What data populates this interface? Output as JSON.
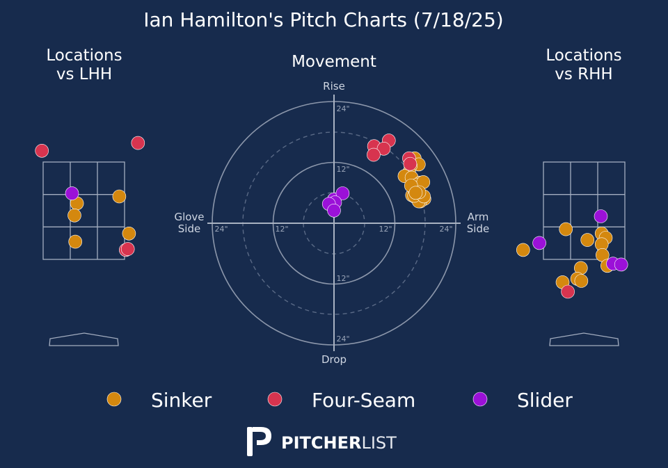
{
  "title": "Ian Hamilton's Pitch Charts (7/18/25)",
  "panels": {
    "lhh_title_line1": "Locations",
    "lhh_title_line2": "vs LHH",
    "movement_title": "Movement",
    "rhh_title_line1": "Locations",
    "rhh_title_line2": "vs RHH"
  },
  "movement_axes": {
    "top": "Rise",
    "bottom": "Drop",
    "left_line1": "Glove",
    "left_line2": "Side",
    "right_line1": "Arm",
    "right_line2": "Side",
    "ring_labels": [
      "24\"",
      "12\"",
      "12\"",
      "24\""
    ]
  },
  "logo": {
    "bold": "PITCHER",
    "light": "LIST"
  },
  "colors": {
    "background": "#172b4d",
    "Sinker": "#d4880f",
    "Four-Seam": "#d7344f",
    "Slider": "#9b11d8"
  },
  "chart_data": [
    {
      "type": "scatter",
      "title": "Movement",
      "xlabel": "Glove Side / Arm Side (inches)",
      "ylabel": "Drop / Rise (inches)",
      "xlim": [
        -24,
        24
      ],
      "ylim": [
        -24,
        24
      ],
      "series": [
        {
          "name": "Sinker",
          "points": [
            [
              15.9,
              12.8
            ],
            [
              16.7,
              11.6
            ],
            [
              15.1,
              11.3
            ],
            [
              14.8,
              10.0
            ],
            [
              13.9,
              9.3
            ],
            [
              15.3,
              9.0
            ],
            [
              17.0,
              8.0
            ],
            [
              16.4,
              7.6
            ],
            [
              16.0,
              6.8
            ],
            [
              15.9,
              6.6
            ],
            [
              15.4,
              5.5
            ],
            [
              16.1,
              5.1
            ],
            [
              17.8,
              4.8
            ],
            [
              17.0,
              4.3
            ],
            [
              16.7,
              4.3
            ],
            [
              15.8,
              5.4
            ],
            [
              15.6,
              7.0
            ],
            [
              17.7,
              5.3
            ],
            [
              17.6,
              8.1
            ],
            [
              15.2,
              7.4
            ],
            [
              16.8,
              6.1
            ],
            [
              16.1,
              6.0
            ]
          ]
        },
        {
          "name": "Four-Seam",
          "points": [
            [
              10.8,
              16.3
            ],
            [
              7.9,
              15.2
            ],
            [
              9.8,
              14.7
            ],
            [
              7.8,
              13.5
            ],
            [
              14.8,
              12.8
            ],
            [
              15.0,
              11.7
            ]
          ]
        },
        {
          "name": "Slider",
          "points": [
            [
              0.0,
              4.7
            ],
            [
              1.7,
              5.9
            ],
            [
              0.2,
              4.1
            ],
            [
              -1.0,
              3.8
            ],
            [
              0.0,
              2.5
            ]
          ]
        }
      ]
    },
    {
      "type": "scatter",
      "title": "Locations vs LHH",
      "xlabel": "",
      "ylabel": "",
      "series": [
        {
          "name": "Sinker",
          "points": [
            [
              0.87,
              1.46
            ],
            [
              -0.17,
              1.3
            ],
            [
              -0.23,
              1.02
            ],
            [
              -0.21,
              0.41
            ],
            [
              1.11,
              0.6
            ]
          ]
        },
        {
          "name": "Four-Seam",
          "points": [
            [
              -1.03,
              2.52
            ],
            [
              1.33,
              2.7
            ],
            [
              1.03,
              0.22
            ],
            [
              1.08,
              0.24
            ]
          ]
        },
        {
          "name": "Slider",
          "points": [
            [
              -0.29,
              1.53
            ]
          ]
        }
      ]
    },
    {
      "type": "scatter",
      "title": "Locations vs RHH",
      "xlabel": "",
      "ylabel": "",
      "series": [
        {
          "name": "Sinker",
          "points": [
            [
              -1.5,
              0.22
            ],
            [
              -0.45,
              0.7
            ],
            [
              0.08,
              0.45
            ],
            [
              0.43,
              0.6
            ],
            [
              0.53,
              0.5
            ],
            [
              0.43,
              0.35
            ],
            [
              0.45,
              0.1
            ],
            [
              0.57,
              -0.15
            ],
            [
              -0.08,
              -0.2
            ],
            [
              -0.17,
              -0.45
            ],
            [
              -0.53,
              -0.53
            ],
            [
              -0.07,
              -0.5
            ]
          ]
        },
        {
          "name": "Four-Seam",
          "points": [
            [
              -0.4,
              -0.75
            ]
          ]
        },
        {
          "name": "Slider",
          "points": [
            [
              0.41,
              1.0
            ],
            [
              -1.1,
              0.38
            ],
            [
              0.71,
              -0.1
            ],
            [
              0.91,
              -0.12
            ]
          ]
        }
      ]
    }
  ],
  "legend": [
    "Sinker",
    "Four-Seam",
    "Slider"
  ]
}
